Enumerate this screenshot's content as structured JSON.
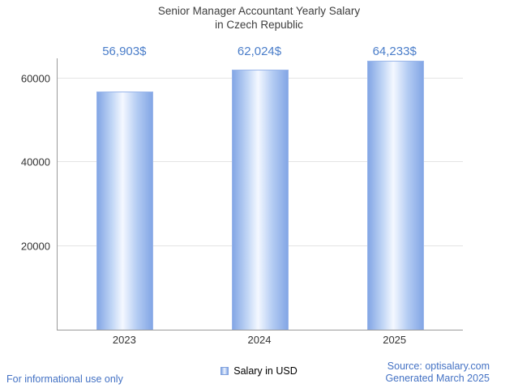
{
  "chart_data": {
    "type": "bar",
    "title": "Senior Manager Accountant Yearly Salary in Czech Republic",
    "title_lines": [
      "Senior Manager Accountant Yearly Salary",
      "in Czech Republic"
    ],
    "categories": [
      "2023",
      "2024",
      "2025"
    ],
    "values": [
      56903,
      62024,
      64233
    ],
    "value_labels": [
      "56,903$",
      "62,024$",
      "64,233$"
    ],
    "series": [
      {
        "name": "Salary in USD",
        "values": [
          56903,
          62024,
          64233
        ]
      }
    ],
    "xlabel": "",
    "ylabel": "",
    "ylim": [
      0,
      64800
    ],
    "yticks": [
      20000,
      40000,
      60000
    ],
    "grid": true,
    "legend": [
      "Salary in USD"
    ],
    "legend_position": "bottom"
  },
  "legend": {
    "label": "Salary in USD"
  },
  "footer": {
    "disclaimer": "For informational use only",
    "source": "Source: optisalary.com",
    "generated": "Generated March 2025"
  },
  "colors": {
    "value_label_text": "#4a7dc9",
    "footer_link_blue": "#4472c4",
    "bar_edge": "#83a6e5",
    "bar_center": "#f4f8ff",
    "axis_line": "#9b9b9b",
    "gridline": "#e4e4e4",
    "title_text": "#3d3d3d"
  }
}
